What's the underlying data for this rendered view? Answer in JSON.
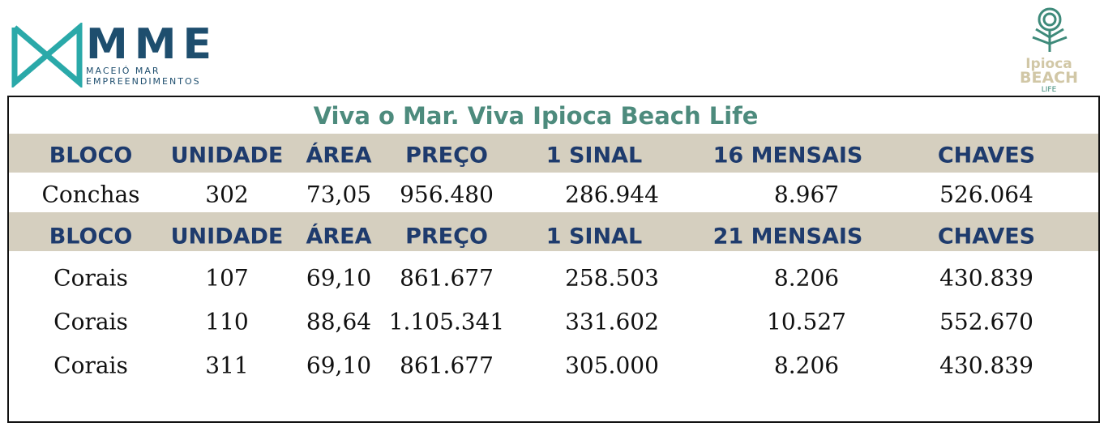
{
  "logo_left": {
    "name": "MME",
    "line1": "MACEIÓ MAR",
    "line2": "EMPREENDIMENTOS"
  },
  "logo_right": {
    "line1": "Ipioca",
    "line2": "BEACH",
    "line3": "LIFE"
  },
  "title": "Viva o Mar. Viva Ipioca Beach Life",
  "sections": [
    {
      "header": [
        "BLOCO",
        "UNIDADE",
        "ÁREA",
        "PREÇO",
        "1 SINAL",
        "16 MENSAIS",
        "CHAVES"
      ],
      "rows": [
        [
          "Conchas",
          "302",
          "73,05",
          "956.480",
          "286.944",
          "8.967",
          "526.064"
        ]
      ]
    },
    {
      "header": [
        "BLOCO",
        "UNIDADE",
        "ÁREA",
        "PREÇO",
        "1 SINAL",
        "21 MENSAIS",
        "CHAVES"
      ],
      "rows": [
        [
          "Corais",
          "107",
          "69,10",
          "861.677",
          "258.503",
          "8.206",
          "430.839"
        ],
        [
          "Corais",
          "110",
          "88,64",
          "1.105.341",
          "331.602",
          "10.527",
          "552.670"
        ],
        [
          "Corais",
          "311",
          "69,10",
          "861.677",
          "305.000",
          "8.206",
          "430.839"
        ]
      ]
    }
  ]
}
